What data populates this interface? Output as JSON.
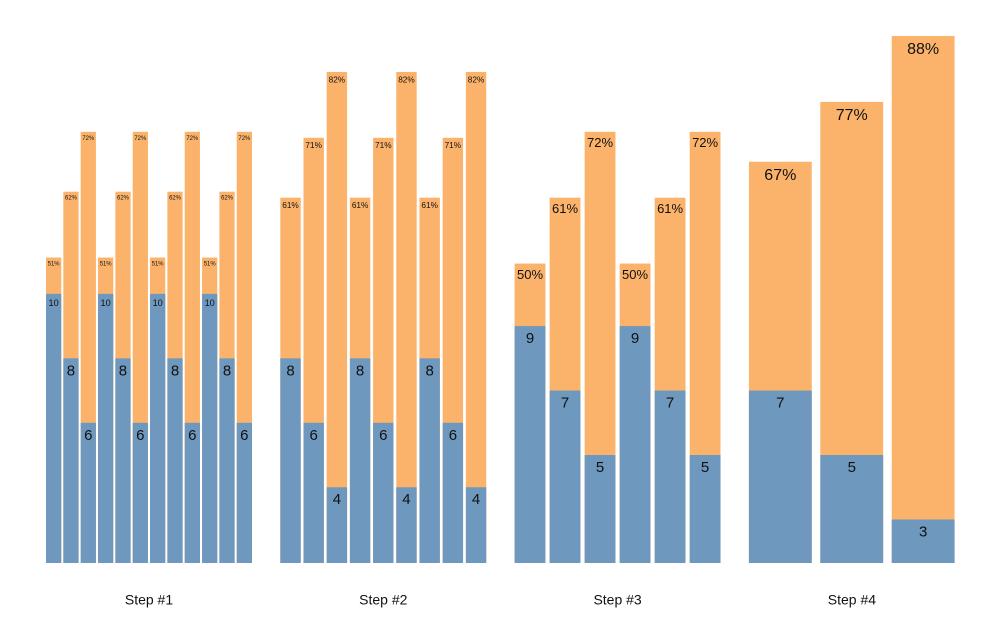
{
  "chart_data": {
    "type": "bar",
    "ylim": [
      0,
      88
    ],
    "y2lim": [
      1.65,
      18
    ],
    "groups": [
      {
        "category": "Step #1",
        "series": [
          {
            "color": "#fbb36b",
            "values": [
              51,
              62,
              72,
              51,
              62,
              72,
              51,
              62,
              72,
              51,
              62,
              72
            ],
            "value_labels": [
              "51%",
              "62%",
              "72%",
              "51%",
              "62%",
              "72%",
              "51%",
              "62%",
              "72%",
              "51%",
              "62%",
              "72%"
            ]
          },
          {
            "color": "#6e98bd",
            "axis": "y2",
            "values": [
              10,
              8,
              6,
              10,
              8,
              6,
              10,
              8,
              6,
              10,
              8,
              6
            ]
          }
        ]
      },
      {
        "category": "Step #2",
        "series": [
          {
            "color": "#fbb36b",
            "values": [
              61,
              71,
              82,
              61,
              71,
              82,
              61,
              71,
              82
            ],
            "value_labels": [
              "61%",
              "71%",
              "82%",
              "61%",
              "71%",
              "82%",
              "61%",
              "71%",
              "82%"
            ]
          },
          {
            "color": "#6e98bd",
            "axis": "y2",
            "values": [
              8,
              6,
              4,
              8,
              6,
              4,
              8,
              6,
              4
            ]
          }
        ]
      },
      {
        "category": "Step #3",
        "series": [
          {
            "color": "#fbb36b",
            "values": [
              50,
              61,
              72,
              50,
              61,
              72
            ],
            "value_labels": [
              "50%",
              "61%",
              "72%",
              "50%",
              "61%",
              "72%"
            ]
          },
          {
            "color": "#6e98bd",
            "axis": "y2",
            "values": [
              9,
              7,
              5,
              9,
              7,
              5
            ]
          }
        ]
      },
      {
        "category": "Step #4",
        "series": [
          {
            "color": "#fbb36b",
            "values": [
              67,
              77,
              88
            ],
            "value_labels": [
              "67%",
              "77%",
              "88%"
            ]
          },
          {
            "color": "#6e98bd",
            "axis": "y2",
            "values": [
              7,
              5,
              3
            ]
          }
        ]
      }
    ]
  }
}
